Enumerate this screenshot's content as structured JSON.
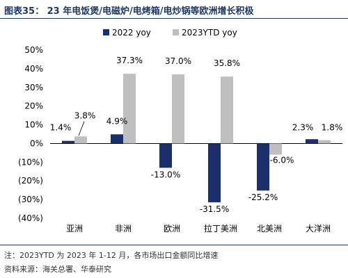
{
  "figure": {
    "title": "图表35： 23 年电饭煲/电磁炉/电烤箱/电炒锅等欧洲增长积极"
  },
  "footer": {
    "note": "注：2023YTD 为 2023 年 1-12 月，各市场出口金额同比增速",
    "source": "资料来源：海关总署、华泰研究"
  },
  "colors": {
    "series_2022": "#1a2f6b",
    "series_2023ytd": "#bfbfbf",
    "title": "#1f3864"
  },
  "chart_data": {
    "type": "bar",
    "title": "",
    "xlabel": "",
    "ylabel": "",
    "categories": [
      "亚洲",
      "非洲",
      "欧洲",
      "拉丁美洲",
      "北美洲",
      "大洋洲"
    ],
    "series": [
      {
        "name": "2022 yoy",
        "values": [
          1.4,
          4.9,
          -13.0,
          -31.5,
          -25.2,
          2.3
        ],
        "labels": [
          "1.4%",
          "4.9%",
          "-13.0%",
          "-31.5%",
          "-25.2%",
          "2.3%"
        ]
      },
      {
        "name": "2023YTD yoy",
        "values": [
          3.8,
          37.3,
          37.0,
          35.8,
          -6.0,
          1.8
        ],
        "labels": [
          "3.8%",
          "37.3%",
          "37.0%",
          "35.8%",
          "-6.0%",
          "1.8%"
        ]
      }
    ],
    "ylim": [
      -40,
      50
    ],
    "yticks": [
      50,
      40,
      30,
      20,
      10,
      0,
      -10,
      -20,
      -30,
      -40
    ],
    "ytick_labels": [
      "50%",
      "40%",
      "30%",
      "20%",
      "10%",
      "0%",
      "(10%)",
      "(20%)",
      "(30%)",
      "(40%)"
    ],
    "grid": false,
    "legend_position": "top"
  }
}
